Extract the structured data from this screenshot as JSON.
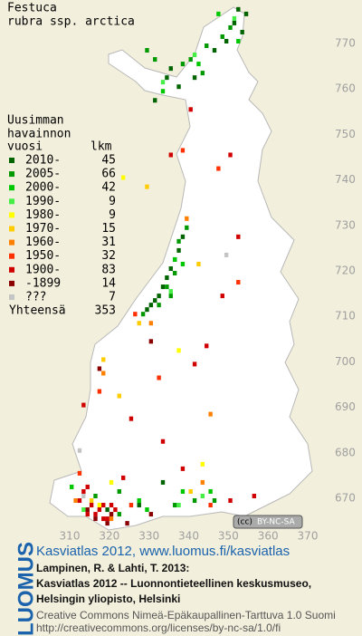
{
  "title": [
    "Festuca",
    "rubra ssp. arctica"
  ],
  "legend": {
    "heading": [
      "Uusimman",
      "havainnon",
      "vuosi"
    ],
    "count_heading": "lkm",
    "entries": [
      {
        "label": "2010-",
        "count": 45,
        "color": "#006400",
        "squares": [
          [
            352,
            777
          ],
          [
            354,
            776
          ],
          [
            351,
            774
          ],
          [
            353,
            772
          ],
          [
            349,
            770
          ],
          [
            346,
            768
          ],
          [
            335,
            764
          ],
          [
            334,
            762
          ],
          [
            337,
            760
          ],
          [
            341,
            762
          ],
          [
            331,
            757
          ],
          [
            336,
            722
          ],
          [
            335,
            720
          ],
          [
            334,
            718
          ],
          [
            333,
            716
          ],
          [
            332,
            714
          ],
          [
            331,
            713
          ],
          [
            330,
            712
          ],
          [
            337,
            724
          ],
          [
            338,
            727
          ],
          [
            329,
            711
          ],
          [
            333,
            673
          ],
          [
            327,
            668
          ],
          [
            319,
            667
          ]
        ]
      },
      {
        "label": "2005-",
        "count": 66,
        "color": "#009a00",
        "squares": [
          [
            350,
            773
          ],
          [
            348,
            771
          ],
          [
            344,
            769
          ],
          [
            340,
            766
          ],
          [
            338,
            765
          ],
          [
            329,
            768
          ],
          [
            331,
            766
          ],
          [
            343,
            763
          ],
          [
            336,
            719
          ],
          [
            334,
            716
          ],
          [
            335,
            714
          ],
          [
            339,
            729
          ],
          [
            337,
            726
          ],
          [
            332,
            712
          ],
          [
            328,
            710
          ],
          [
            316,
            670
          ],
          [
            322,
            666
          ],
          [
            336,
            668
          ],
          [
            341,
            669
          ],
          [
            346,
            669
          ],
          [
            322,
            671
          ]
        ]
      },
      {
        "label": "2000-",
        "count": 42,
        "color": "#00c800",
        "squares": [
          [
            347,
            776
          ],
          [
            352,
            770
          ],
          [
            342,
            765
          ],
          [
            333,
            759
          ],
          [
            336,
            722
          ],
          [
            338,
            721
          ],
          [
            327,
            669
          ],
          [
            329,
            667
          ],
          [
            338,
            671
          ],
          [
            345,
            671
          ],
          [
            310,
            672
          ]
        ]
      },
      {
        "label": "1990-",
        "count": 9,
        "color": "#44ee44",
        "squares": [
          [
            351,
            775
          ],
          [
            341,
            767
          ],
          [
            333,
            761
          ],
          [
            335,
            715
          ],
          [
            337,
            668
          ],
          [
            343,
            670
          ],
          [
            313,
            667
          ]
        ]
      },
      {
        "label": "1980-",
        "count": 9,
        "color": "#ffff00",
        "squares": [
          [
            323,
            740
          ],
          [
            337,
            702
          ],
          [
            320,
            673
          ],
          [
            317,
            668
          ],
          [
            343,
            677
          ]
        ]
      },
      {
        "label": "1970-",
        "count": 15,
        "color": "#ffcc00",
        "squares": [
          [
            329,
            738
          ],
          [
            342,
            721
          ],
          [
            318,
            700
          ],
          [
            322,
            692
          ],
          [
            327,
            708
          ],
          [
            340,
            671
          ],
          [
            315,
            669
          ]
        ]
      },
      {
        "label": "1960-",
        "count": 31,
        "color": "#ff8000",
        "squares": [
          [
            339,
            731
          ],
          [
            318,
            697
          ],
          [
            330,
            708
          ],
          [
            345,
            688
          ],
          [
            343,
            673
          ],
          [
            311,
            669
          ],
          [
            320,
            665
          ]
        ]
      },
      {
        "label": "1950-",
        "count": 32,
        "color": "#ff3000",
        "squares": [
          [
            338,
            746
          ],
          [
            347,
            742
          ],
          [
            326,
            710
          ],
          [
            352,
            717
          ],
          [
            332,
            696
          ],
          [
            317,
            693
          ],
          [
            345,
            668
          ],
          [
            312,
            675
          ],
          [
            325,
            668
          ]
        ]
      },
      {
        "label": "1900-",
        "count": 83,
        "color": "#d00000",
        "squares": [
          [
            314,
            666
          ],
          [
            315,
            668
          ],
          [
            316,
            666
          ],
          [
            317,
            667
          ],
          [
            318,
            665
          ],
          [
            318,
            668
          ],
          [
            319,
            665
          ],
          [
            320,
            668
          ],
          [
            321,
            667
          ],
          [
            313,
            671
          ],
          [
            312,
            669
          ],
          [
            314,
            672
          ],
          [
            323,
            674
          ],
          [
            333,
            682
          ],
          [
            344,
            703
          ],
          [
            348,
            714
          ],
          [
            352,
            727
          ],
          [
            350,
            745
          ],
          [
            340,
            755
          ],
          [
            335,
            745
          ],
          [
            325,
            687
          ],
          [
            313,
            690
          ],
          [
            341,
            699
          ],
          [
            338,
            676
          ],
          [
            356,
            670
          ],
          [
            350,
            669
          ]
        ]
      },
      {
        "label": "-1899",
        "count": 14,
        "color": "#8a0000",
        "squares": [
          [
            314,
            667
          ],
          [
            316,
            665
          ],
          [
            319,
            664
          ],
          [
            320,
            666
          ],
          [
            324,
            664
          ],
          [
            330,
            666
          ],
          [
            317,
            698
          ],
          [
            330,
            704
          ]
        ]
      },
      {
        "label": "???",
        "count": 7,
        "color": "#c4c4c4",
        "squares": [
          [
            349,
            723
          ],
          [
            312,
            680
          ],
          [
            313,
            670
          ]
        ]
      }
    ],
    "total_label": "Yhteensä",
    "total": 353
  },
  "axes": {
    "xticks": [
      310,
      320,
      330,
      340,
      350,
      360,
      370
    ],
    "yticks": [
      670,
      680,
      690,
      700,
      710,
      720,
      730,
      740,
      750,
      760,
      770
    ]
  },
  "license_badge": [
    "(cc)",
    "BY-NC-SA"
  ],
  "footer": {
    "logo": "LUOMUS",
    "link": "Kasviatlas 2012, www.luomus.fi/kasviatlas",
    "citation": [
      "Lampinen, R. & Lahti, T. 2013:",
      "Kasviatlas 2012 -- Luonnontieteellinen keskusmuseo,",
      "Helsingin yliopisto, Helsinki"
    ],
    "license": [
      "Creative Commons Nimeä-Epäkaupallinen-Tarttuva 1.0 Suomi",
      "http://creativecommons.org/licenses/by-nc-sa/1.0/fi"
    ]
  }
}
